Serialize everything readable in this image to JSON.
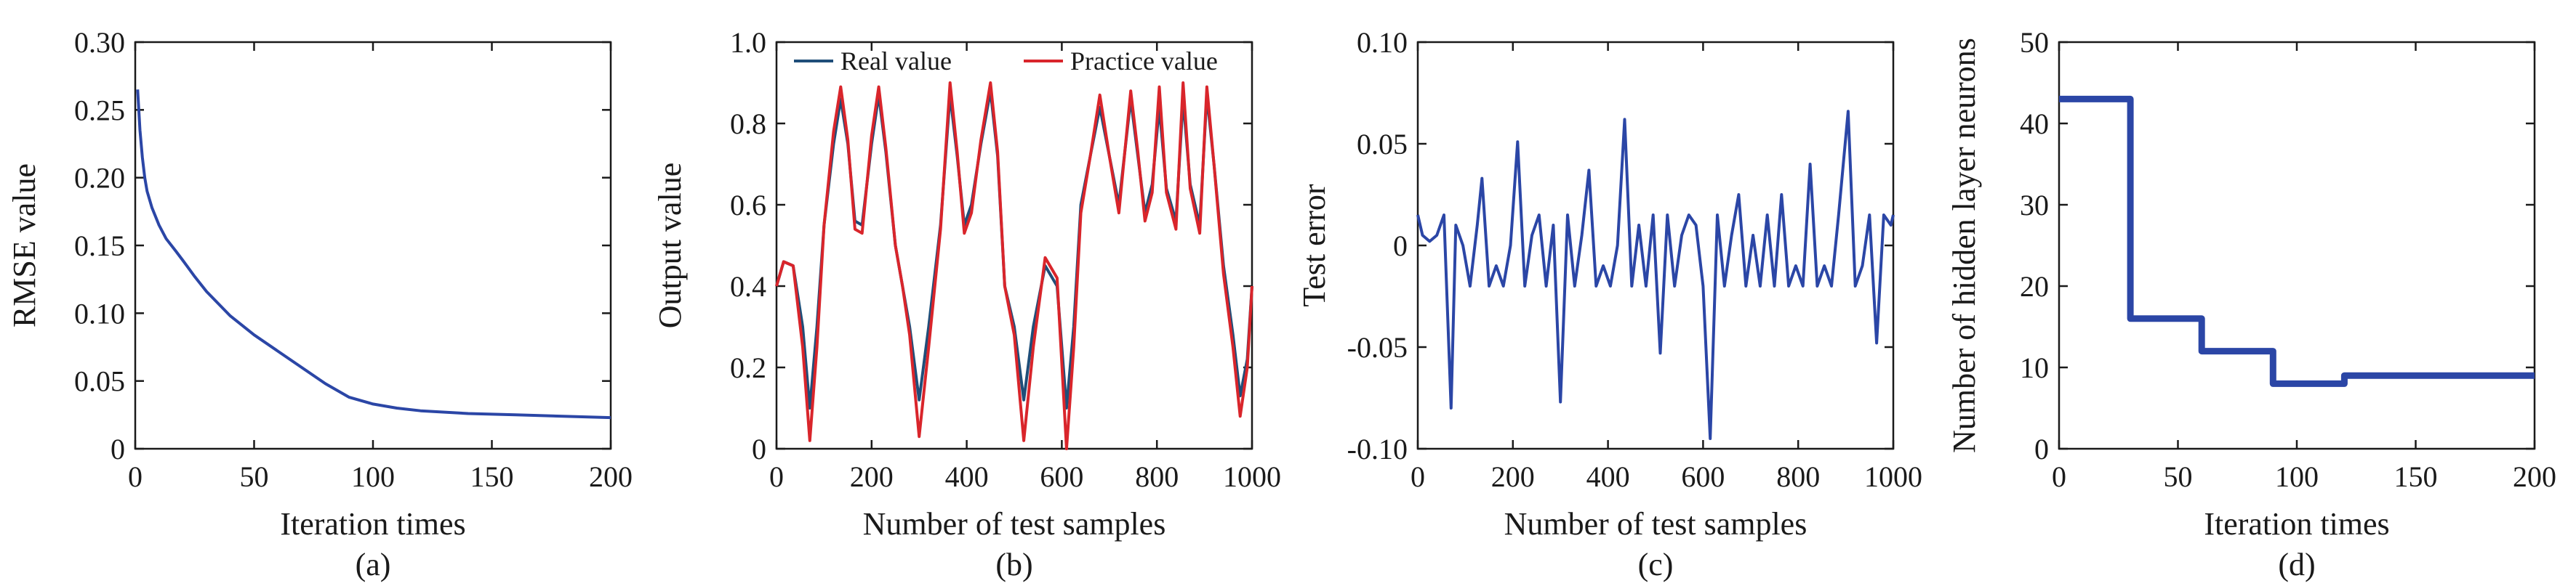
{
  "colors": {
    "blue": "#2b46a6",
    "red": "#d9252b",
    "dark_teal": "#1f4e79",
    "axis": "#1a1a1a"
  },
  "chart_data": [
    {
      "id": "a",
      "type": "line",
      "panel_label": "(a)",
      "xlabel": "Iteration times",
      "ylabel": "RMSE value",
      "xlim": [
        0,
        200
      ],
      "ylim": [
        0,
        0.3
      ],
      "xticks": [
        0,
        50,
        100,
        150,
        200
      ],
      "xtick_labels": [
        "0",
        "50",
        "100",
        "150",
        "200"
      ],
      "yticks": [
        0,
        0.05,
        0.1,
        0.15,
        0.2,
        0.25,
        0.3
      ],
      "ytick_labels": [
        "0",
        "0.05",
        "0.10",
        "0.15",
        "0.20",
        "0.25",
        "0.30"
      ],
      "series": [
        {
          "color": "#2b46a6",
          "x": [
            1,
            2,
            3,
            4,
            5,
            7,
            10,
            13,
            17,
            20,
            25,
            30,
            40,
            50,
            60,
            70,
            80,
            90,
            100,
            110,
            120,
            140,
            160,
            180,
            200
          ],
          "y": [
            0.265,
            0.235,
            0.215,
            0.2,
            0.19,
            0.178,
            0.165,
            0.155,
            0.146,
            0.139,
            0.127,
            0.116,
            0.098,
            0.084,
            0.072,
            0.06,
            0.048,
            0.038,
            0.033,
            0.03,
            0.028,
            0.026,
            0.025,
            0.024,
            0.023
          ]
        }
      ]
    },
    {
      "id": "b",
      "type": "line",
      "panel_label": "(b)",
      "xlabel": "Number of test samples",
      "ylabel": "Output value",
      "xlim": [
        0,
        1000
      ],
      "ylim": [
        0,
        1.0
      ],
      "xticks": [
        0,
        200,
        400,
        600,
        800,
        1000
      ],
      "xtick_labels": [
        "0",
        "200",
        "400",
        "600",
        "800",
        "1000"
      ],
      "yticks": [
        0,
        0.2,
        0.4,
        0.6,
        0.8,
        1.0
      ],
      "ytick_labels": [
        "0",
        "0.2",
        "0.4",
        "0.6",
        "0.8",
        "1.0"
      ],
      "legend": {
        "placement": "top",
        "entries": [
          "Real value",
          "Practice value"
        ]
      },
      "series": [
        {
          "name": "Real value",
          "color": "#1f4e79",
          "x": [
            0,
            15,
            35,
            55,
            70,
            85,
            100,
            120,
            135,
            150,
            165,
            180,
            200,
            215,
            230,
            250,
            265,
            280,
            300,
            320,
            345,
            365,
            380,
            395,
            410,
            430,
            450,
            465,
            480,
            500,
            520,
            540,
            565,
            590,
            610,
            625,
            640,
            660,
            680,
            700,
            720,
            745,
            760,
            775,
            790,
            805,
            820,
            840,
            855,
            870,
            890,
            905,
            920,
            940,
            960,
            975,
            990,
            1000
          ],
          "y": [
            0.4,
            0.46,
            0.45,
            0.3,
            0.1,
            0.3,
            0.55,
            0.75,
            0.86,
            0.75,
            0.56,
            0.55,
            0.75,
            0.87,
            0.73,
            0.5,
            0.4,
            0.3,
            0.12,
            0.3,
            0.55,
            0.87,
            0.72,
            0.55,
            0.6,
            0.75,
            0.88,
            0.72,
            0.4,
            0.3,
            0.12,
            0.3,
            0.45,
            0.4,
            0.1,
            0.3,
            0.6,
            0.72,
            0.84,
            0.72,
            0.6,
            0.86,
            0.72,
            0.58,
            0.65,
            0.84,
            0.64,
            0.56,
            0.86,
            0.65,
            0.55,
            0.87,
            0.7,
            0.45,
            0.28,
            0.13,
            0.22,
            0.4
          ]
        },
        {
          "name": "Practice value",
          "color": "#d9252b",
          "x": [
            0,
            15,
            35,
            55,
            70,
            85,
            100,
            120,
            135,
            150,
            165,
            180,
            200,
            215,
            230,
            250,
            265,
            280,
            300,
            320,
            345,
            365,
            380,
            395,
            410,
            430,
            450,
            465,
            480,
            500,
            520,
            540,
            565,
            590,
            610,
            625,
            640,
            660,
            680,
            700,
            720,
            745,
            760,
            775,
            790,
            805,
            820,
            840,
            855,
            870,
            890,
            905,
            920,
            940,
            960,
            975,
            990,
            1000
          ],
          "y": [
            0.4,
            0.46,
            0.45,
            0.25,
            0.02,
            0.25,
            0.55,
            0.78,
            0.89,
            0.76,
            0.54,
            0.53,
            0.77,
            0.89,
            0.74,
            0.5,
            0.4,
            0.28,
            0.03,
            0.25,
            0.54,
            0.9,
            0.73,
            0.53,
            0.58,
            0.76,
            0.9,
            0.73,
            0.4,
            0.28,
            0.02,
            0.25,
            0.47,
            0.42,
            0.0,
            0.25,
            0.58,
            0.72,
            0.87,
            0.72,
            0.58,
            0.88,
            0.73,
            0.56,
            0.63,
            0.89,
            0.63,
            0.54,
            0.9,
            0.64,
            0.53,
            0.89,
            0.7,
            0.43,
            0.25,
            0.08,
            0.2,
            0.4
          ]
        }
      ]
    },
    {
      "id": "c",
      "type": "line",
      "panel_label": "(c)",
      "xlabel": "Number of test samples",
      "ylabel": "Test error",
      "xlim": [
        0,
        1000
      ],
      "ylim": [
        -0.1,
        0.1
      ],
      "xticks": [
        0,
        200,
        400,
        600,
        800,
        1000
      ],
      "xtick_labels": [
        "0",
        "200",
        "400",
        "600",
        "800",
        "1000"
      ],
      "yticks": [
        -0.1,
        -0.05,
        0,
        0.05,
        0.1
      ],
      "ytick_labels": [
        "-0.10",
        "-0.05",
        "0",
        "0.05",
        "0.10"
      ],
      "series": [
        {
          "color": "#2b46a6",
          "x": [
            0,
            10,
            25,
            40,
            55,
            70,
            80,
            95,
            110,
            125,
            135,
            150,
            165,
            180,
            195,
            210,
            225,
            240,
            255,
            270,
            285,
            300,
            315,
            330,
            345,
            360,
            375,
            390,
            405,
            420,
            435,
            450,
            465,
            480,
            495,
            510,
            525,
            540,
            555,
            570,
            585,
            600,
            615,
            630,
            645,
            660,
            675,
            690,
            705,
            720,
            735,
            750,
            765,
            780,
            795,
            810,
            825,
            840,
            855,
            870,
            885,
            905,
            920,
            935,
            950,
            965,
            980,
            995,
            1000
          ],
          "y": [
            0.015,
            0.005,
            0.002,
            0.005,
            0.015,
            -0.08,
            0.01,
            0.0,
            -0.02,
            0.01,
            0.033,
            -0.02,
            -0.01,
            -0.02,
            0.0,
            0.051,
            -0.02,
            0.005,
            0.015,
            -0.02,
            0.01,
            -0.077,
            0.015,
            -0.02,
            0.005,
            0.037,
            -0.02,
            -0.01,
            -0.02,
            0.0,
            0.062,
            -0.02,
            0.01,
            -0.02,
            0.015,
            -0.053,
            0.015,
            -0.02,
            0.005,
            0.015,
            0.01,
            -0.02,
            -0.095,
            0.015,
            -0.02,
            0.005,
            0.025,
            -0.02,
            0.005,
            -0.02,
            0.015,
            -0.02,
            0.025,
            -0.02,
            -0.01,
            -0.02,
            0.04,
            -0.02,
            -0.01,
            -0.02,
            0.015,
            0.066,
            -0.02,
            -0.01,
            0.015,
            -0.048,
            0.015,
            0.01,
            0.015
          ]
        }
      ]
    },
    {
      "id": "d",
      "type": "line",
      "panel_label": "(d)",
      "xlabel": "Iteration times",
      "ylabel": "Number of hidden layer neurons",
      "xlim": [
        0,
        200
      ],
      "ylim": [
        0,
        50
      ],
      "xticks": [
        0,
        50,
        100,
        150,
        200
      ],
      "xtick_labels": [
        "0",
        "50",
        "100",
        "150",
        "200"
      ],
      "yticks": [
        0,
        10,
        20,
        30,
        40,
        50
      ],
      "ytick_labels": [
        "0",
        "10",
        "20",
        "30",
        "40",
        "50"
      ],
      "series": [
        {
          "color": "#2b46a6",
          "step": true,
          "x": [
            0,
            30,
            30,
            60,
            60,
            90,
            90,
            120,
            120,
            200
          ],
          "y": [
            43,
            43,
            16,
            16,
            12,
            12,
            8,
            8,
            9,
            9
          ]
        }
      ]
    }
  ]
}
